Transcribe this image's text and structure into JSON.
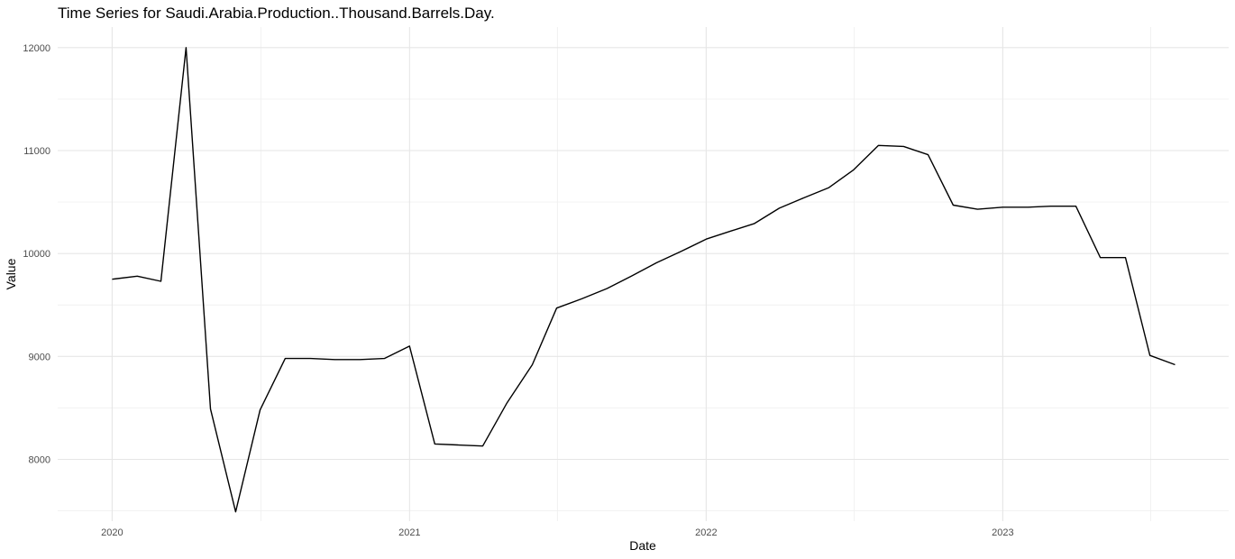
{
  "chart_data": {
    "type": "line",
    "title": "Time Series for Saudi.Arabia.Production..Thousand.Barrels.Day.",
    "xlabel": "Date",
    "ylabel": "Value",
    "x_ticks": [
      "2020",
      "2021",
      "2022",
      "2023"
    ],
    "y_ticks": [
      8000,
      9000,
      10000,
      11000,
      12000
    ],
    "xlim": [
      "2019-10-26",
      "2023-10-06"
    ],
    "ylim": [
      7400,
      12200
    ],
    "grid": true,
    "legend": "none",
    "series": [
      {
        "color": "#000000",
        "x": [
          "2020-01-01",
          "2020-02-01",
          "2020-03-01",
          "2020-04-01",
          "2020-05-01",
          "2020-06-01",
          "2020-07-01",
          "2020-08-01",
          "2020-09-01",
          "2020-10-01",
          "2020-11-01",
          "2020-12-01",
          "2021-01-01",
          "2021-02-01",
          "2021-03-01",
          "2021-04-01",
          "2021-05-01",
          "2021-06-01",
          "2021-07-01",
          "2021-08-01",
          "2021-09-01",
          "2021-10-01",
          "2021-11-01",
          "2021-12-01",
          "2022-01-01",
          "2022-02-01",
          "2022-03-01",
          "2022-04-01",
          "2022-05-01",
          "2022-06-01",
          "2022-07-01",
          "2022-08-01",
          "2022-09-01",
          "2022-10-01",
          "2022-11-01",
          "2022-12-01",
          "2023-01-01",
          "2023-02-01",
          "2023-03-01",
          "2023-04-01",
          "2023-05-01",
          "2023-06-01",
          "2023-07-01",
          "2023-08-01"
        ],
        "values": [
          9750,
          9780,
          9730,
          12000,
          8490,
          7490,
          8480,
          8980,
          8980,
          8970,
          8970,
          8980,
          9100,
          8150,
          8140,
          8130,
          8550,
          8920,
          9470,
          9560,
          9660,
          9780,
          9910,
          10020,
          10140,
          10220,
          10290,
          10440,
          10540,
          10640,
          10810,
          11050,
          11040,
          10960,
          10470,
          10430,
          10450,
          10450,
          10460,
          10460,
          9960,
          9960,
          9010,
          8920
        ]
      }
    ]
  }
}
